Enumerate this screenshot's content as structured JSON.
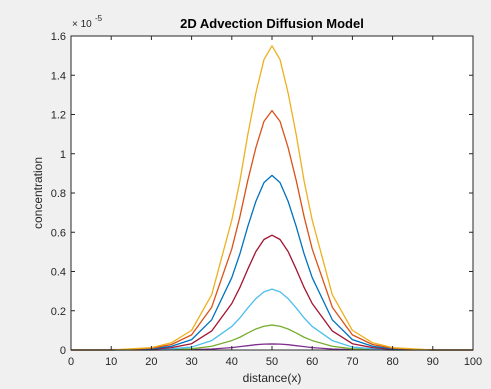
{
  "chart_data": {
    "type": "line",
    "title": "2D Advection Diffusion Model",
    "xlabel": "distance(x)",
    "ylabel": "concentration",
    "exponent_base": "× 10",
    "exponent_power": "-5",
    "xlim": [
      0,
      100
    ],
    "ylim": [
      0,
      1.6
    ],
    "xticks": [
      "0",
      "10",
      "20",
      "30",
      "40",
      "50",
      "60",
      "70",
      "80",
      "90",
      "100"
    ],
    "yticks": [
      "0",
      "0.2",
      "0.4",
      "0.6",
      "0.8",
      "1",
      "1.2",
      "1.4",
      "1.6"
    ],
    "grid": false,
    "legend": "none",
    "x": [
      0,
      10,
      20,
      25,
      30,
      35,
      40,
      42,
      44,
      46,
      48,
      50,
      52,
      54,
      56,
      58,
      60,
      65,
      70,
      75,
      80,
      90,
      100
    ],
    "series": [
      {
        "color": "#7e2f8e",
        "values": [
          0,
          0,
          0,
          0.001,
          0.002,
          0.005,
          0.012,
          0.017,
          0.022,
          0.027,
          0.03,
          0.031,
          0.03,
          0.027,
          0.022,
          0.017,
          0.012,
          0.005,
          0.002,
          0.001,
          0,
          0,
          0
        ]
      },
      {
        "color": "#77ac30",
        "values": [
          0,
          0,
          0,
          0.002,
          0.006,
          0.019,
          0.048,
          0.065,
          0.087,
          0.107,
          0.121,
          0.127,
          0.121,
          0.107,
          0.087,
          0.065,
          0.048,
          0.019,
          0.006,
          0.002,
          0,
          0,
          0
        ]
      },
      {
        "color": "#4dbeee",
        "values": [
          0,
          0,
          0.002,
          0.006,
          0.015,
          0.048,
          0.12,
          0.163,
          0.215,
          0.262,
          0.296,
          0.31,
          0.296,
          0.262,
          0.215,
          0.163,
          0.12,
          0.048,
          0.015,
          0.006,
          0.002,
          0,
          0
        ]
      },
      {
        "color": "#a2142f",
        "values": [
          0,
          0,
          0.004,
          0.012,
          0.032,
          0.097,
          0.237,
          0.318,
          0.413,
          0.502,
          0.563,
          0.585,
          0.563,
          0.502,
          0.413,
          0.318,
          0.237,
          0.097,
          0.032,
          0.012,
          0.004,
          0,
          0
        ]
      },
      {
        "color": "#0072bd",
        "values": [
          0,
          0,
          0.006,
          0.019,
          0.053,
          0.154,
          0.369,
          0.489,
          0.631,
          0.758,
          0.853,
          0.89,
          0.853,
          0.758,
          0.631,
          0.489,
          0.369,
          0.154,
          0.053,
          0.019,
          0.006,
          0,
          0
        ]
      },
      {
        "color": "#d95319",
        "values": [
          0,
          0,
          0.009,
          0.028,
          0.077,
          0.218,
          0.515,
          0.678,
          0.866,
          1.032,
          1.165,
          1.22,
          1.165,
          1.032,
          0.866,
          0.678,
          0.515,
          0.218,
          0.077,
          0.028,
          0.009,
          0,
          0
        ]
      },
      {
        "color": "#edb120",
        "values": [
          0,
          0,
          0.012,
          0.037,
          0.1,
          0.282,
          0.662,
          0.86,
          1.1,
          1.31,
          1.48,
          1.55,
          1.48,
          1.31,
          1.1,
          0.86,
          0.662,
          0.282,
          0.1,
          0.037,
          0.012,
          0,
          0
        ]
      }
    ]
  }
}
